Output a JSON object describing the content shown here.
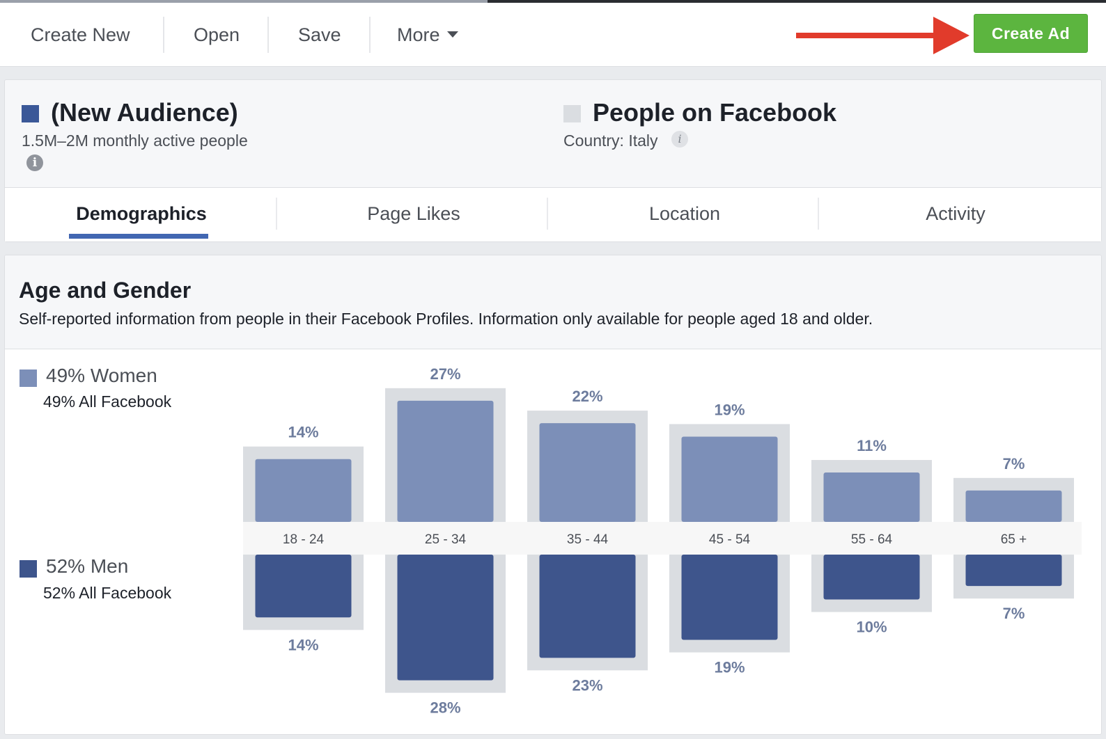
{
  "toolbar": {
    "create_new": "Create New",
    "open": "Open",
    "save": "Save",
    "more": "More",
    "create_ad": "Create Ad"
  },
  "audience": {
    "title": "(New Audience)",
    "size": "1.5M–2M monthly active people",
    "color": "#3b5898"
  },
  "comparison": {
    "title": "People on Facebook",
    "country": "Country: Italy",
    "color": "#dadde1"
  },
  "tabs": [
    "Demographics",
    "Page Likes",
    "Location",
    "Activity"
  ],
  "section": {
    "title": "Age and Gender",
    "description": "Self-reported information from people in their Facebook Profiles. Information only available for people aged 18 and older."
  },
  "legend": {
    "women": {
      "main": "49% Women",
      "sub": "49% All Facebook",
      "color": "#7c8fb8"
    },
    "men": {
      "main": "52% Men",
      "sub": "52% All Facebook",
      "color": "#3e558c"
    }
  },
  "chart_data": {
    "type": "bar",
    "categories": [
      "18 - 24",
      "25 - 34",
      "35 - 44",
      "45 - 54",
      "55 - 64",
      "65 +"
    ],
    "series": [
      {
        "name": "Women",
        "values": [
          14,
          27,
          22,
          19,
          11,
          7
        ]
      },
      {
        "name": "Men",
        "values": [
          14,
          28,
          23,
          19,
          10,
          7
        ]
      }
    ],
    "labels": {
      "women": [
        "14%",
        "27%",
        "22%",
        "19%",
        "11%",
        "7%"
      ],
      "men": [
        "14%",
        "28%",
        "23%",
        "19%",
        "10%",
        "7%"
      ]
    },
    "colors": {
      "women": "#7c8fb8",
      "men": "#3e558c",
      "all_facebook": "#dadde1",
      "label": "#6d7c9d"
    }
  }
}
